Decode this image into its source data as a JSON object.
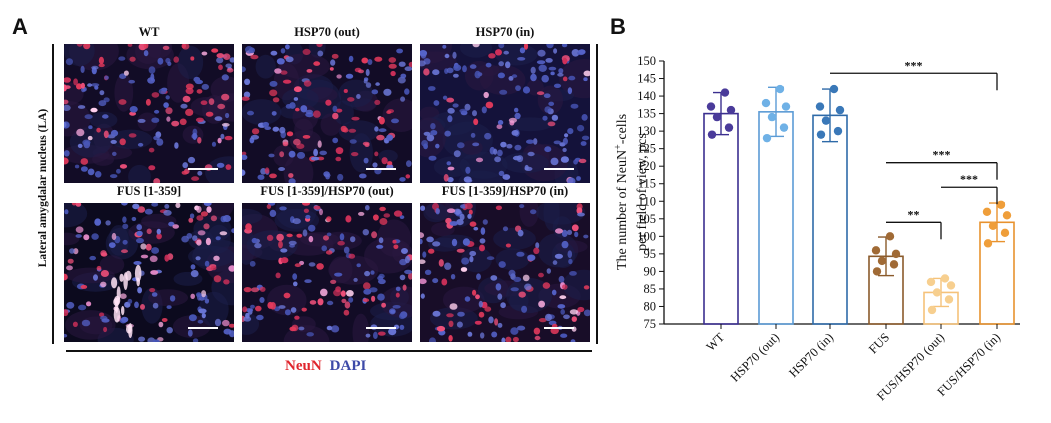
{
  "panel_a": {
    "letter": "A",
    "side_label": "Lateral amygdalar nucleus (LA)",
    "images": [
      {
        "title": "WT",
        "scheme": "red"
      },
      {
        "title": "HSP70 (out)",
        "scheme": "red"
      },
      {
        "title": "HSP70 (in)",
        "scheme": "blue"
      },
      {
        "title": "FUS [1-359]",
        "scheme": "pink"
      },
      {
        "title": "FUS [1-359]/HSP70 (out)",
        "scheme": "red"
      },
      {
        "title": "FUS [1-359]/HSP70 (in)",
        "scheme": "mixed"
      }
    ],
    "legend": {
      "red": "NeuN",
      "blue": "DAPI"
    },
    "colors": {
      "red_stain": "#e0262d",
      "blue_stain": "#3d4aa8"
    }
  },
  "panel_b": {
    "letter": "B"
  },
  "chart_data": {
    "type": "bar",
    "ylabel_line1": "The number of NeuN",
    "ylabel_sup": "+",
    "ylabel_line1_end": "-cells",
    "ylabel_line2": "per field of view, pcs",
    "xlabel": "",
    "ylim": [
      75,
      150
    ],
    "yticks": [
      75,
      80,
      85,
      90,
      95,
      100,
      105,
      110,
      115,
      120,
      125,
      130,
      135,
      140,
      145,
      150
    ],
    "categories": [
      "WT",
      "HSP70 (out)",
      "HSP70 (in)",
      "FUS",
      "FUS/HSP70 (out)",
      "FUS/HSP70 (in)"
    ],
    "values": [
      135,
      135.5,
      134.5,
      94.3,
      84,
      104
    ],
    "errors": [
      6,
      7,
      7.5,
      5.5,
      4,
      5.5
    ],
    "points": [
      [
        129,
        131,
        134,
        136,
        137,
        141
      ],
      [
        128,
        131,
        134,
        137,
        138,
        142
      ],
      [
        129,
        130,
        133,
        136,
        137,
        142
      ],
      [
        90,
        92,
        93,
        95,
        96,
        100
      ],
      [
        79,
        82,
        84,
        86,
        87,
        88
      ],
      [
        98,
        101,
        103,
        106,
        107,
        109
      ]
    ],
    "colors": [
      "#3b2f8f",
      "#5b9bd5",
      "#2e6aa8",
      "#8a5a2b",
      "#f5c27a",
      "#e8922e"
    ],
    "point_colors": [
      "#4a3b9a",
      "#6fb1e6",
      "#3a78b8",
      "#a06a35",
      "#f7cf8f",
      "#ef9e3a"
    ],
    "significance": [
      {
        "from": 2,
        "to": 5,
        "y": 146.5,
        "label": "***"
      },
      {
        "from": 3,
        "to": 5,
        "y": 121,
        "label": "***"
      },
      {
        "from": 4,
        "to": 5,
        "y": 114,
        "label": "***"
      },
      {
        "from": 3,
        "to": 4,
        "y": 104,
        "label": "**"
      }
    ],
    "grid": false
  }
}
